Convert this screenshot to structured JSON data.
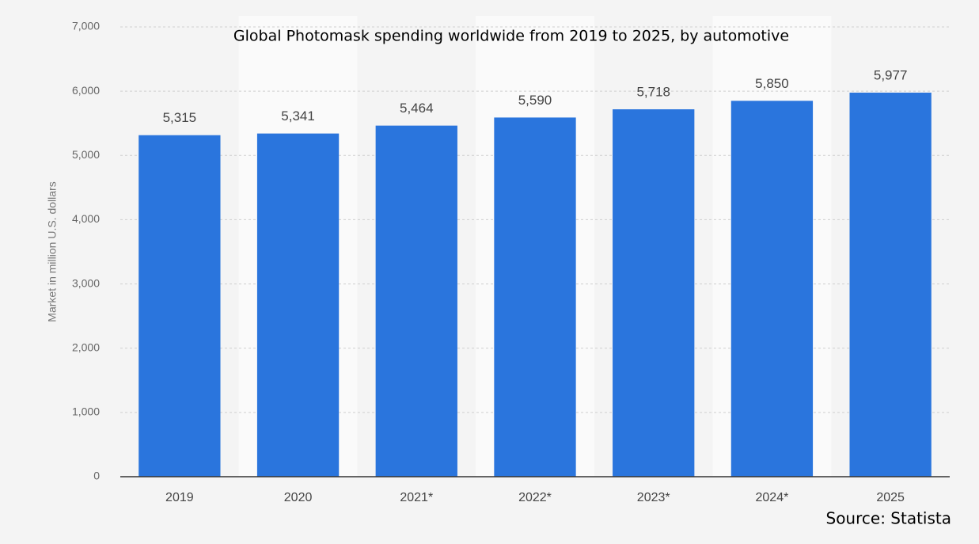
{
  "chart_data": {
    "type": "bar",
    "title": "Global Photomask spending worldwide from 2019 to 2025, by automotive",
    "y_label": "Market in million U.S. dollars",
    "source": "Source: Statista",
    "categories": [
      "2019",
      "2020",
      "2021*",
      "2022*",
      "2023*",
      "2024*",
      "2025"
    ],
    "values": [
      5315,
      5341,
      5464,
      5590,
      5718,
      5850,
      5977
    ],
    "value_labels": [
      "5,315",
      "5,341",
      "5,464",
      "5,590",
      "5,718",
      "5,850",
      "5,977"
    ],
    "color": "#2a75dd",
    "ylim": [
      0,
      7000
    ],
    "yticks": [
      0,
      {
        "value": 1000,
        "label": "1,000"
      },
      {
        "value": 2000,
        "label": "2,000"
      },
      {
        "value": 3000,
        "label": "3,000"
      },
      {
        "value": 4000,
        "label": "4,000"
      },
      {
        "value": 5000,
        "label": "5,000"
      },
      {
        "value": 6000,
        "label": "6,000"
      },
      {
        "value": 7000,
        "label": "7,000"
      }
    ],
    "grid": true
  }
}
